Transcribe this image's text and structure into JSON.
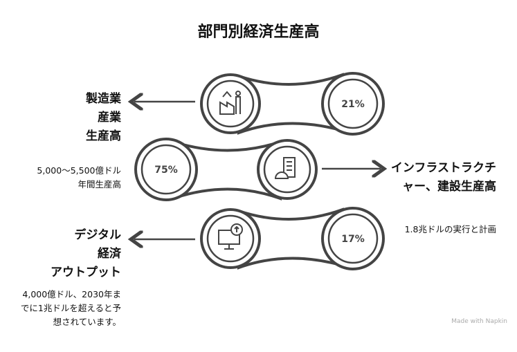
{
  "title": "部門別経済生産高",
  "sectors": [
    {
      "heading": [
        "製造業",
        "産業",
        "生産高"
      ],
      "description": "",
      "percent": "21%",
      "icon": "factory-icon"
    },
    {
      "heading": [
        "インフラストラクチ",
        "ャー、建設生産高"
      ],
      "description": [
        "5,000〜5,500億ドル",
        "年間生産高"
      ],
      "percent": "75%",
      "icon": "construction-icon"
    },
    {
      "heading": [
        "デジタル",
        "経済",
        "アウトプット"
      ],
      "description": [
        "4,000億ドル、2030年ま",
        "でに1兆ドルを超えると予",
        "想されています。"
      ],
      "percent": "17%",
      "icon": "digital-monitor-icon"
    }
  ],
  "infra_note": "1.8兆ドルの実行と計画",
  "watermark": "Made with Napkin"
}
